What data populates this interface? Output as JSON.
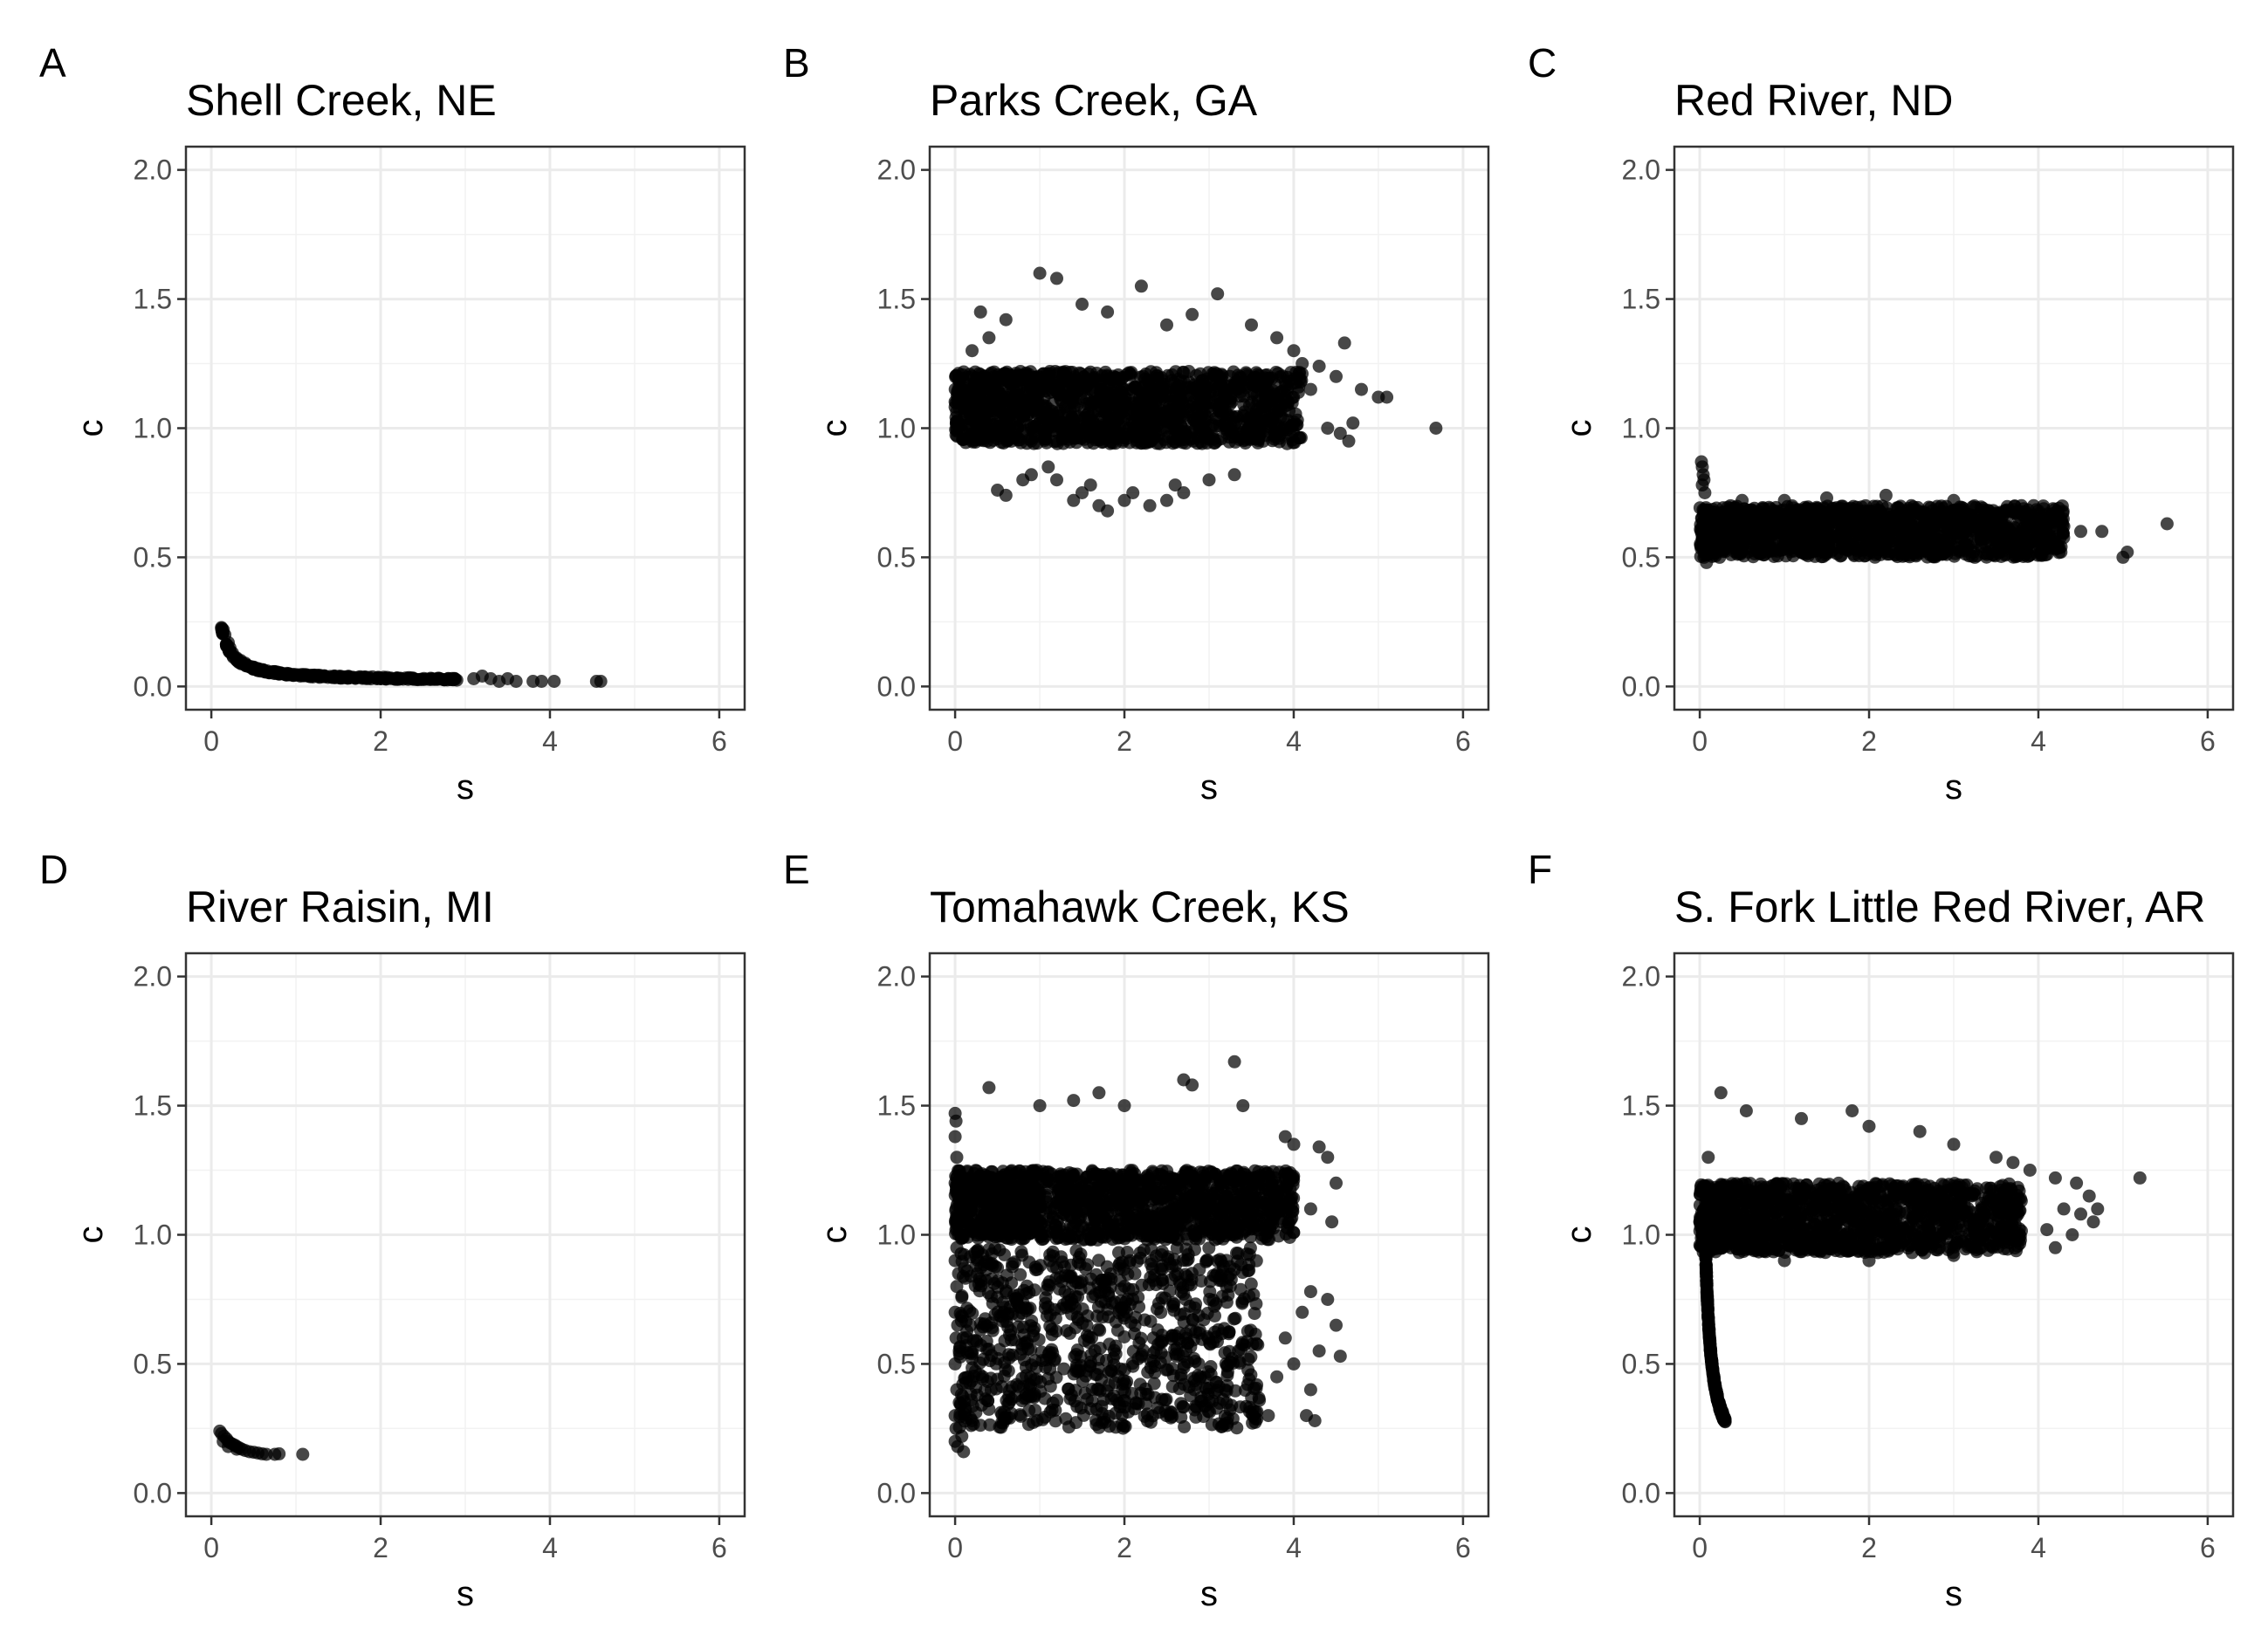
{
  "chart_data": [
    {
      "type": "scatter",
      "panel": "A",
      "title": "Shell Creek, NE",
      "xlabel": "s",
      "ylabel": "c",
      "xlim": [
        -0.3,
        6.3
      ],
      "ylim": [
        -0.09,
        2.09
      ],
      "x_ticks": [
        0,
        2,
        4,
        6
      ],
      "y_ticks": [
        0.0,
        0.5,
        1.0,
        1.5,
        2.0
      ],
      "x_tick_labels": [
        "0",
        "2",
        "4",
        "6"
      ],
      "y_tick_labels": [
        "0.0",
        "0.5",
        "1.0",
        "1.5",
        "2.0"
      ],
      "grid": true,
      "point_color": "#000000",
      "curve": {
        "a": 0.02,
        "b": 0.025,
        "x0": 0.12,
        "x1": 2.9,
        "noise": 0.008
      },
      "points": [
        [
          0.14,
          0.22
        ],
        [
          0.16,
          0.2
        ],
        [
          0.2,
          0.17
        ],
        [
          0.22,
          0.15
        ],
        [
          0.25,
          0.13
        ],
        [
          0.3,
          0.11
        ],
        [
          0.35,
          0.1
        ],
        [
          0.4,
          0.09
        ],
        [
          0.5,
          0.075
        ],
        [
          0.6,
          0.065
        ],
        [
          0.8,
          0.05
        ],
        [
          1.0,
          0.045
        ],
        [
          1.3,
          0.04
        ],
        [
          1.6,
          0.035
        ],
        [
          2.0,
          0.03
        ],
        [
          2.4,
          0.028
        ],
        [
          2.8,
          0.03
        ],
        [
          3.1,
          0.03
        ],
        [
          3.2,
          0.04
        ],
        [
          3.3,
          0.03
        ],
        [
          3.4,
          0.02
        ],
        [
          3.5,
          0.03
        ],
        [
          3.6,
          0.02
        ],
        [
          3.8,
          0.02
        ],
        [
          3.9,
          0.02
        ],
        [
          4.05,
          0.02
        ],
        [
          4.55,
          0.02
        ],
        [
          4.6,
          0.02
        ]
      ]
    },
    {
      "type": "scatter",
      "panel": "B",
      "title": "Parks Creek, GA",
      "xlabel": "s",
      "ylabel": "c",
      "xlim": [
        -0.3,
        6.3
      ],
      "ylim": [
        -0.09,
        2.09
      ],
      "x_ticks": [
        0,
        2,
        4,
        6
      ],
      "y_ticks": [
        0.0,
        0.5,
        1.0,
        1.5,
        2.0
      ],
      "x_tick_labels": [
        "0",
        "2",
        "4",
        "6"
      ],
      "y_tick_labels": [
        "0.0",
        "0.5",
        "1.0",
        "1.5",
        "2.0"
      ],
      "grid": true,
      "point_color": "#000000",
      "dense_region": {
        "x_range": [
          0.0,
          4.1
        ],
        "y_range": [
          0.94,
          1.22
        ]
      },
      "points": [
        [
          1.0,
          1.6
        ],
        [
          1.2,
          1.58
        ],
        [
          2.2,
          1.55
        ],
        [
          3.1,
          1.52
        ],
        [
          1.5,
          1.48
        ],
        [
          0.6,
          1.42
        ],
        [
          2.8,
          1.44
        ],
        [
          3.5,
          1.4
        ],
        [
          0.3,
          1.45
        ],
        [
          1.8,
          1.45
        ],
        [
          4.1,
          1.25
        ],
        [
          4.3,
          1.24
        ],
        [
          4.6,
          1.33
        ],
        [
          4.5,
          1.2
        ],
        [
          4.8,
          1.15
        ],
        [
          5.0,
          1.12
        ],
        [
          5.1,
          1.12
        ],
        [
          4.4,
          1.0
        ],
        [
          4.7,
          1.02
        ],
        [
          5.68,
          1.0
        ],
        [
          4.0,
          1.3
        ],
        [
          3.8,
          1.35
        ],
        [
          2.5,
          1.4
        ],
        [
          0.5,
          0.76
        ],
        [
          0.8,
          0.8
        ],
        [
          0.9,
          0.82
        ],
        [
          1.1,
          0.85
        ],
        [
          1.2,
          0.8
        ],
        [
          1.4,
          0.72
        ],
        [
          1.5,
          0.75
        ],
        [
          1.7,
          0.7
        ],
        [
          1.8,
          0.68
        ],
        [
          2.0,
          0.72
        ],
        [
          2.1,
          0.75
        ],
        [
          2.3,
          0.7
        ],
        [
          2.5,
          0.72
        ],
        [
          2.7,
          0.75
        ],
        [
          3.0,
          0.8
        ],
        [
          3.3,
          0.82
        ],
        [
          0.6,
          0.74
        ],
        [
          1.6,
          0.78
        ],
        [
          2.6,
          0.78
        ],
        [
          0.2,
          1.3
        ],
        [
          0.1,
          1.15
        ],
        [
          0.4,
          1.35
        ],
        [
          3.9,
          1.18
        ],
        [
          4.2,
          1.15
        ],
        [
          4.55,
          0.98
        ],
        [
          4.65,
          0.95
        ]
      ]
    },
    {
      "type": "scatter",
      "panel": "C",
      "title": "Red River, ND",
      "xlabel": "s",
      "ylabel": "c",
      "xlim": [
        -0.3,
        6.3
      ],
      "ylim": [
        -0.09,
        2.09
      ],
      "x_ticks": [
        0,
        2,
        4,
        6
      ],
      "y_ticks": [
        0.0,
        0.5,
        1.0,
        1.5,
        2.0
      ],
      "x_tick_labels": [
        "0",
        "2",
        "4",
        "6"
      ],
      "y_tick_labels": [
        "0.0",
        "0.5",
        "1.0",
        "1.5",
        "2.0"
      ],
      "grid": true,
      "point_color": "#000000",
      "dense_region": {
        "x_range": [
          0.0,
          4.3
        ],
        "y_range": [
          0.5,
          0.7
        ]
      },
      "points": [
        [
          0.02,
          0.87
        ],
        [
          0.03,
          0.85
        ],
        [
          0.04,
          0.82
        ],
        [
          0.05,
          0.8
        ],
        [
          0.03,
          0.78
        ],
        [
          0.06,
          0.75
        ],
        [
          0.05,
          0.5
        ],
        [
          0.08,
          0.48
        ],
        [
          1.5,
          0.73
        ],
        [
          2.2,
          0.74
        ],
        [
          3.0,
          0.72
        ],
        [
          3.8,
          0.7
        ],
        [
          4.0,
          0.68
        ],
        [
          4.1,
          0.62
        ],
        [
          4.3,
          0.62
        ],
        [
          4.5,
          0.6
        ],
        [
          4.75,
          0.6
        ],
        [
          5.0,
          0.5
        ],
        [
          5.05,
          0.52
        ],
        [
          5.52,
          0.63
        ],
        [
          0.5,
          0.72
        ],
        [
          1.0,
          0.72
        ],
        [
          2.5,
          0.7
        ],
        [
          3.5,
          0.65
        ]
      ]
    },
    {
      "type": "scatter",
      "panel": "D",
      "title": "River Raisin, MI",
      "xlabel": "s",
      "ylabel": "c",
      "xlim": [
        -0.3,
        6.3
      ],
      "ylim": [
        -0.09,
        2.09
      ],
      "x_ticks": [
        0,
        2,
        4,
        6
      ],
      "y_ticks": [
        0.0,
        0.5,
        1.0,
        1.5,
        2.0
      ],
      "x_tick_labels": [
        "0",
        "2",
        "4",
        "6"
      ],
      "y_tick_labels": [
        "0.0",
        "0.5",
        "1.0",
        "1.5",
        "2.0"
      ],
      "grid": true,
      "point_color": "#000000",
      "points": [
        [
          0.1,
          0.24
        ],
        [
          0.12,
          0.23
        ],
        [
          0.15,
          0.22
        ],
        [
          0.18,
          0.21
        ],
        [
          0.2,
          0.2
        ],
        [
          0.22,
          0.195
        ],
        [
          0.25,
          0.19
        ],
        [
          0.28,
          0.185
        ],
        [
          0.3,
          0.18
        ],
        [
          0.33,
          0.175
        ],
        [
          0.36,
          0.17
        ],
        [
          0.4,
          0.165
        ],
        [
          0.45,
          0.16
        ],
        [
          0.5,
          0.158
        ],
        [
          0.55,
          0.155
        ],
        [
          0.6,
          0.152
        ],
        [
          0.65,
          0.15
        ],
        [
          0.75,
          0.15
        ],
        [
          0.8,
          0.152
        ],
        [
          1.08,
          0.15
        ],
        [
          0.14,
          0.2
        ],
        [
          0.2,
          0.18
        ],
        [
          0.3,
          0.17
        ]
      ]
    },
    {
      "type": "scatter",
      "panel": "E",
      "title": "Tomahawk Creek, KS",
      "xlabel": "s",
      "ylabel": "c",
      "xlim": [
        -0.3,
        6.3
      ],
      "ylim": [
        -0.09,
        2.09
      ],
      "x_ticks": [
        0,
        2,
        4,
        6
      ],
      "y_ticks": [
        0.0,
        0.5,
        1.0,
        1.5,
        2.0
      ],
      "x_tick_labels": [
        "0",
        "2",
        "4",
        "6"
      ],
      "y_tick_labels": [
        "0.0",
        "0.5",
        "1.0",
        "1.5",
        "2.0"
      ],
      "grid": true,
      "point_color": "#000000",
      "dense_region": {
        "x_range": [
          0.0,
          4.0
        ],
        "y_range": [
          0.98,
          1.25
        ]
      },
      "scatter_region": {
        "x_range": [
          0.05,
          3.6
        ],
        "y_range": [
          0.25,
          0.95
        ]
      },
      "points": [
        [
          3.3,
          1.67
        ],
        [
          2.7,
          1.6
        ],
        [
          2.8,
          1.58
        ],
        [
          1.7,
          1.55
        ],
        [
          1.4,
          1.52
        ],
        [
          0.4,
          1.57
        ],
        [
          1.0,
          1.5
        ],
        [
          2.0,
          1.5
        ],
        [
          3.4,
          1.5
        ],
        [
          3.9,
          1.38
        ],
        [
          4.0,
          1.35
        ],
        [
          4.3,
          1.34
        ],
        [
          4.4,
          1.3
        ],
        [
          4.5,
          1.2
        ],
        [
          4.2,
          1.1
        ],
        [
          4.45,
          1.05
        ],
        [
          4.55,
          0.53
        ],
        [
          4.5,
          0.65
        ],
        [
          4.3,
          0.55
        ],
        [
          4.2,
          0.78
        ],
        [
          4.4,
          0.75
        ],
        [
          4.1,
          0.7
        ],
        [
          4.0,
          0.5
        ],
        [
          4.2,
          0.4
        ],
        [
          4.25,
          0.28
        ],
        [
          4.15,
          0.3
        ],
        [
          3.9,
          0.6
        ],
        [
          3.8,
          0.45
        ],
        [
          3.7,
          0.3
        ],
        [
          0.0,
          1.47
        ],
        [
          0.01,
          1.44
        ],
        [
          0.0,
          1.38
        ],
        [
          0.02,
          1.3
        ],
        [
          0.0,
          1.2
        ],
        [
          0.01,
          1.1
        ],
        [
          0.0,
          0.9
        ],
        [
          0.02,
          0.8
        ],
        [
          0.0,
          0.7
        ],
        [
          0.01,
          0.6
        ],
        [
          0.0,
          0.5
        ],
        [
          0.02,
          0.4
        ],
        [
          0.0,
          0.3
        ],
        [
          0.01,
          0.25
        ],
        [
          0.0,
          0.2
        ],
        [
          0.03,
          0.18
        ],
        [
          0.1,
          0.16
        ],
        [
          0.08,
          0.22
        ],
        [
          0.2,
          0.28
        ],
        [
          0.05,
          0.35
        ],
        [
          0.05,
          0.55
        ],
        [
          0.03,
          0.65
        ],
        [
          0.04,
          0.85
        ],
        [
          0.02,
          0.95
        ]
      ]
    },
    {
      "type": "scatter",
      "panel": "F",
      "title": "S. Fork Little Red River, AR",
      "xlabel": "s",
      "ylabel": "c",
      "xlim": [
        -0.3,
        6.3
      ],
      "ylim": [
        -0.09,
        2.09
      ],
      "x_ticks": [
        0,
        2,
        4,
        6
      ],
      "y_ticks": [
        0.0,
        0.5,
        1.0,
        1.5,
        2.0
      ],
      "x_tick_labels": [
        "0",
        "2",
        "4",
        "6"
      ],
      "y_tick_labels": [
        "0.0",
        "0.5",
        "1.0",
        "1.5",
        "2.0"
      ],
      "grid": true,
      "point_color": "#000000",
      "dense_region": {
        "x_range": [
          0.0,
          3.8
        ],
        "y_range": [
          0.93,
          1.2
        ]
      },
      "curve": {
        "a": 0.08,
        "b": 0.06,
        "x0": 0.07,
        "x1": 0.3,
        "noise": 0.02
      },
      "points": [
        [
          0.25,
          1.55
        ],
        [
          0.55,
          1.48
        ],
        [
          1.8,
          1.48
        ],
        [
          1.2,
          1.45
        ],
        [
          2.0,
          1.42
        ],
        [
          2.6,
          1.4
        ],
        [
          3.0,
          1.35
        ],
        [
          3.5,
          1.3
        ],
        [
          3.7,
          1.28
        ],
        [
          3.9,
          1.25
        ],
        [
          4.2,
          1.22
        ],
        [
          4.45,
          1.2
        ],
        [
          4.6,
          1.15
        ],
        [
          4.7,
          1.1
        ],
        [
          4.65,
          1.05
        ],
        [
          4.3,
          1.1
        ],
        [
          4.5,
          1.08
        ],
        [
          4.1,
          1.02
        ],
        [
          4.4,
          1.0
        ],
        [
          4.2,
          0.95
        ],
        [
          5.2,
          1.22
        ],
        [
          0.1,
          1.3
        ],
        [
          0.05,
          1.1
        ],
        [
          0.03,
          1.0
        ],
        [
          1.0,
          0.9
        ],
        [
          2.0,
          0.9
        ],
        [
          3.0,
          0.92
        ]
      ]
    }
  ]
}
